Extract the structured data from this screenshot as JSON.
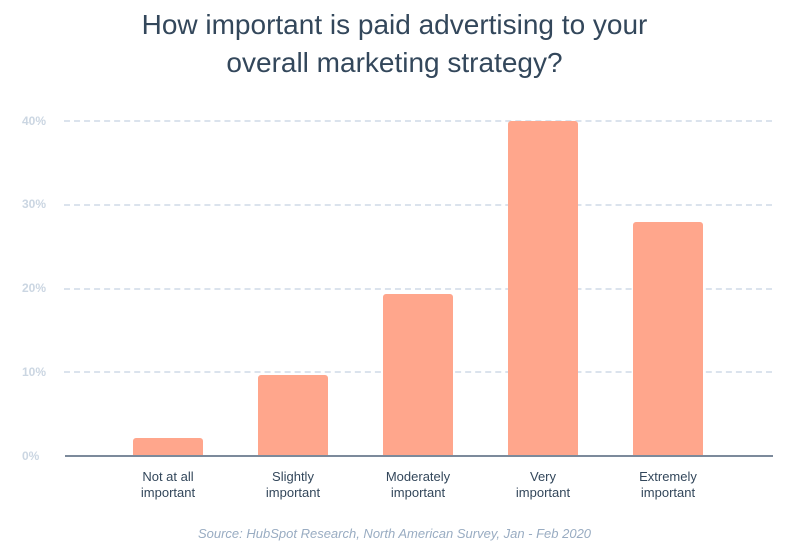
{
  "chart_data": {
    "type": "bar",
    "title": "How important is paid advertising to your overall marketing strategy?",
    "title_lines": [
      "How important is paid advertising to your",
      "overall marketing strategy?"
    ],
    "categories": [
      "Not at all important",
      "Slightly important",
      "Moderately important",
      "Very important",
      "Extremely important"
    ],
    "category_lines": [
      [
        "Not at all",
        "important"
      ],
      [
        "Slightly",
        "important"
      ],
      [
        "Moderately",
        "important"
      ],
      [
        "Very",
        "important"
      ],
      [
        "Extremely",
        "important"
      ]
    ],
    "values": [
      2.2,
      9.7,
      19.3,
      40.0,
      27.9
    ],
    "xlabel": "",
    "ylabel": "",
    "ylim": [
      0,
      40
    ],
    "yticks": [
      "0%",
      "10%",
      "20%",
      "30%",
      "40%"
    ],
    "grid": true,
    "legend": null,
    "source": "Source: HubSpot Research, North American Survey, Jan - Feb 2020",
    "colors": {
      "bar": "#ffa68c",
      "title": "#33475b",
      "grid": "#dbe3ed",
      "axis": "#7c8a9b",
      "tick": "#cbd6e2",
      "source": "#99acc2"
    }
  }
}
